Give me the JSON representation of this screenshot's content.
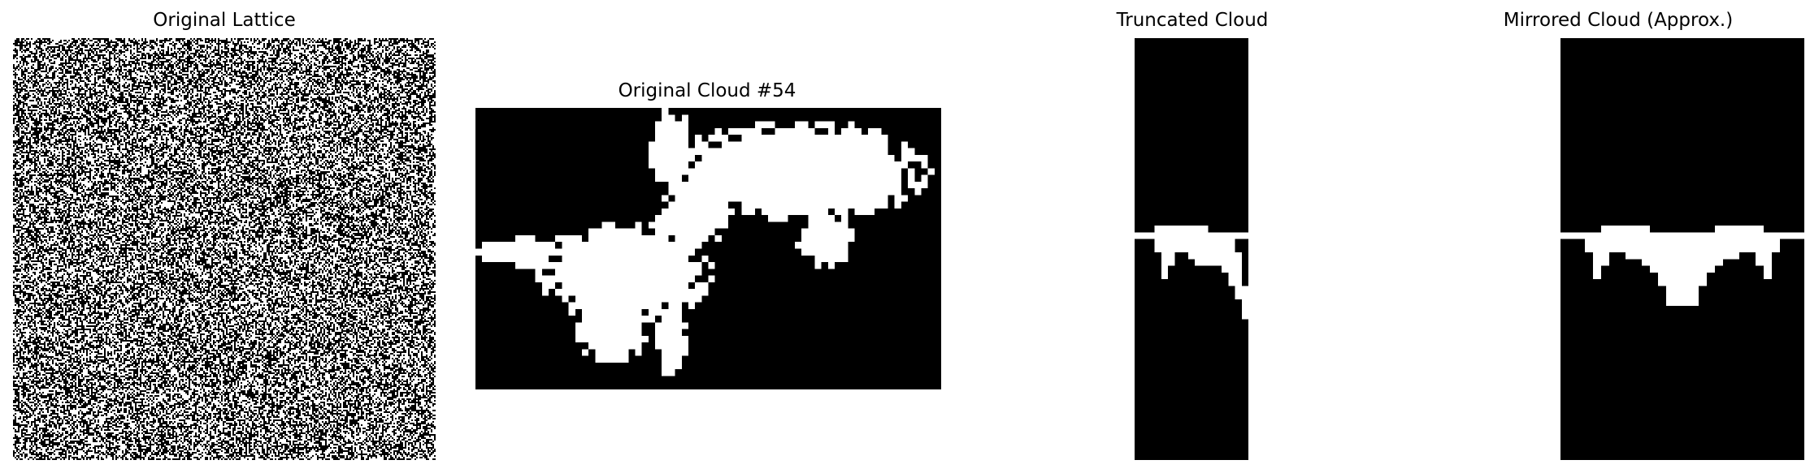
{
  "panels": [
    {
      "title": "Original Lattice",
      "kind": "noise"
    },
    {
      "title": "Original Cloud #54",
      "kind": "cloud"
    },
    {
      "title": "Truncated Cloud",
      "kind": "truncated"
    },
    {
      "title": "Mirrored Cloud (Approx.)",
      "kind": "mirrored"
    }
  ],
  "colors": {
    "background": "#ffffff",
    "occupied": "#ffffff",
    "empty": "#000000"
  }
}
